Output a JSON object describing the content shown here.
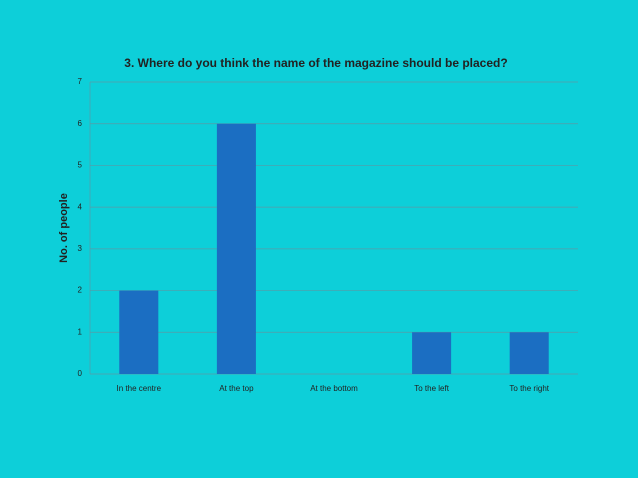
{
  "chart_data": {
    "type": "bar",
    "title": "3. Where do you think the name of the magazine should be placed?",
    "y_label": "No. of people",
    "categories": [
      "In the centre",
      "At the top",
      "At the bottom",
      "To the left",
      "To the right"
    ],
    "values": [
      2,
      6,
      0,
      1,
      1
    ],
    "color": "#1b6ec2",
    "ylim": [
      0,
      7
    ],
    "yticks": [
      0,
      1,
      2,
      3,
      4,
      5,
      6,
      7
    ],
    "grid": true
  }
}
